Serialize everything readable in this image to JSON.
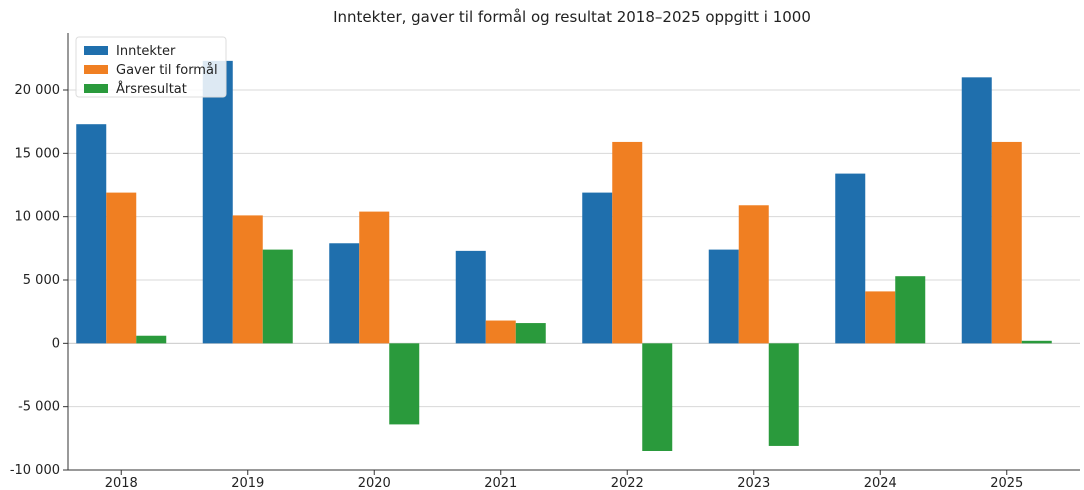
{
  "chart_data": {
    "type": "bar",
    "title": "Inntekter, gaver til formål og resultat 2018–2025 oppgitt i 1000",
    "xlabel": "",
    "ylabel": "",
    "categories": [
      "2018",
      "2019",
      "2020",
      "2021",
      "2022",
      "2023",
      "2024",
      "2025"
    ],
    "series": [
      {
        "name": "Inntekter",
        "color": "#1f6fad",
        "values": [
          17300,
          22300,
          7900,
          7300,
          11900,
          7400,
          13400,
          21000
        ]
      },
      {
        "name": "Gaver til formål",
        "color": "#f07f22",
        "values": [
          11900,
          10100,
          10400,
          1800,
          15900,
          10900,
          4100,
          15900
        ]
      },
      {
        "name": "Årsresultat",
        "color": "#2a9a3c",
        "values": [
          600,
          7400,
          -6400,
          1600,
          -8500,
          -8100,
          5300,
          200
        ]
      }
    ],
    "ylim": [
      -10000,
      24500
    ],
    "yticks": [
      -10000,
      -5000,
      0,
      5000,
      10000,
      15000,
      20000
    ],
    "ytick_labels": [
      "-10 000",
      "-5 000",
      "0",
      "5 000",
      "10 000",
      "15 000",
      "20 000"
    ],
    "grid": true,
    "legend_position": "top-left"
  }
}
